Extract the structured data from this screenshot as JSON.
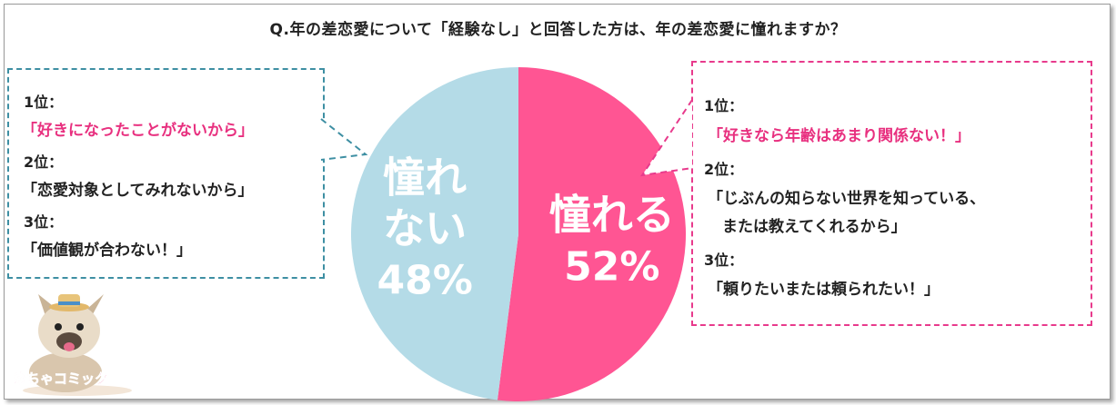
{
  "title": "Q.年の差恋愛について「経験なし」と回答した方は、年の差恋愛に憧れますか？",
  "chart_data": {
    "type": "pie",
    "slices": [
      {
        "label_lines": [
          "憧れる"
        ],
        "value": 52,
        "value_label": "52%",
        "color": "#ff5593"
      },
      {
        "label_lines": [
          "憧れ",
          "ない"
        ],
        "value": 48,
        "value_label": "48%",
        "color": "#b4dbe7"
      }
    ]
  },
  "left_box": {
    "items": [
      {
        "rank": "1位：",
        "reason": "「好きになったことがないから」"
      },
      {
        "rank": "2位：",
        "reason": "「恋愛対象としてみれないから」"
      },
      {
        "rank": "3位：",
        "reason": "「価値観が合わない！」"
      }
    ]
  },
  "right_box": {
    "items": [
      {
        "rank": "1位：",
        "reason": "「好きなら年齢はあまり関係ない！」"
      },
      {
        "rank": "2位：",
        "reason": "「じぶんの知らない世界を知っている、",
        "reason_cont": "または教えてくれるから」"
      },
      {
        "rank": "3位：",
        "reason": "「頼りたいまたは頼られたい！」"
      }
    ]
  },
  "logo": {
    "text": "めちゃコミック",
    "colors": [
      "#e8307f",
      "#1aa0d8"
    ]
  }
}
